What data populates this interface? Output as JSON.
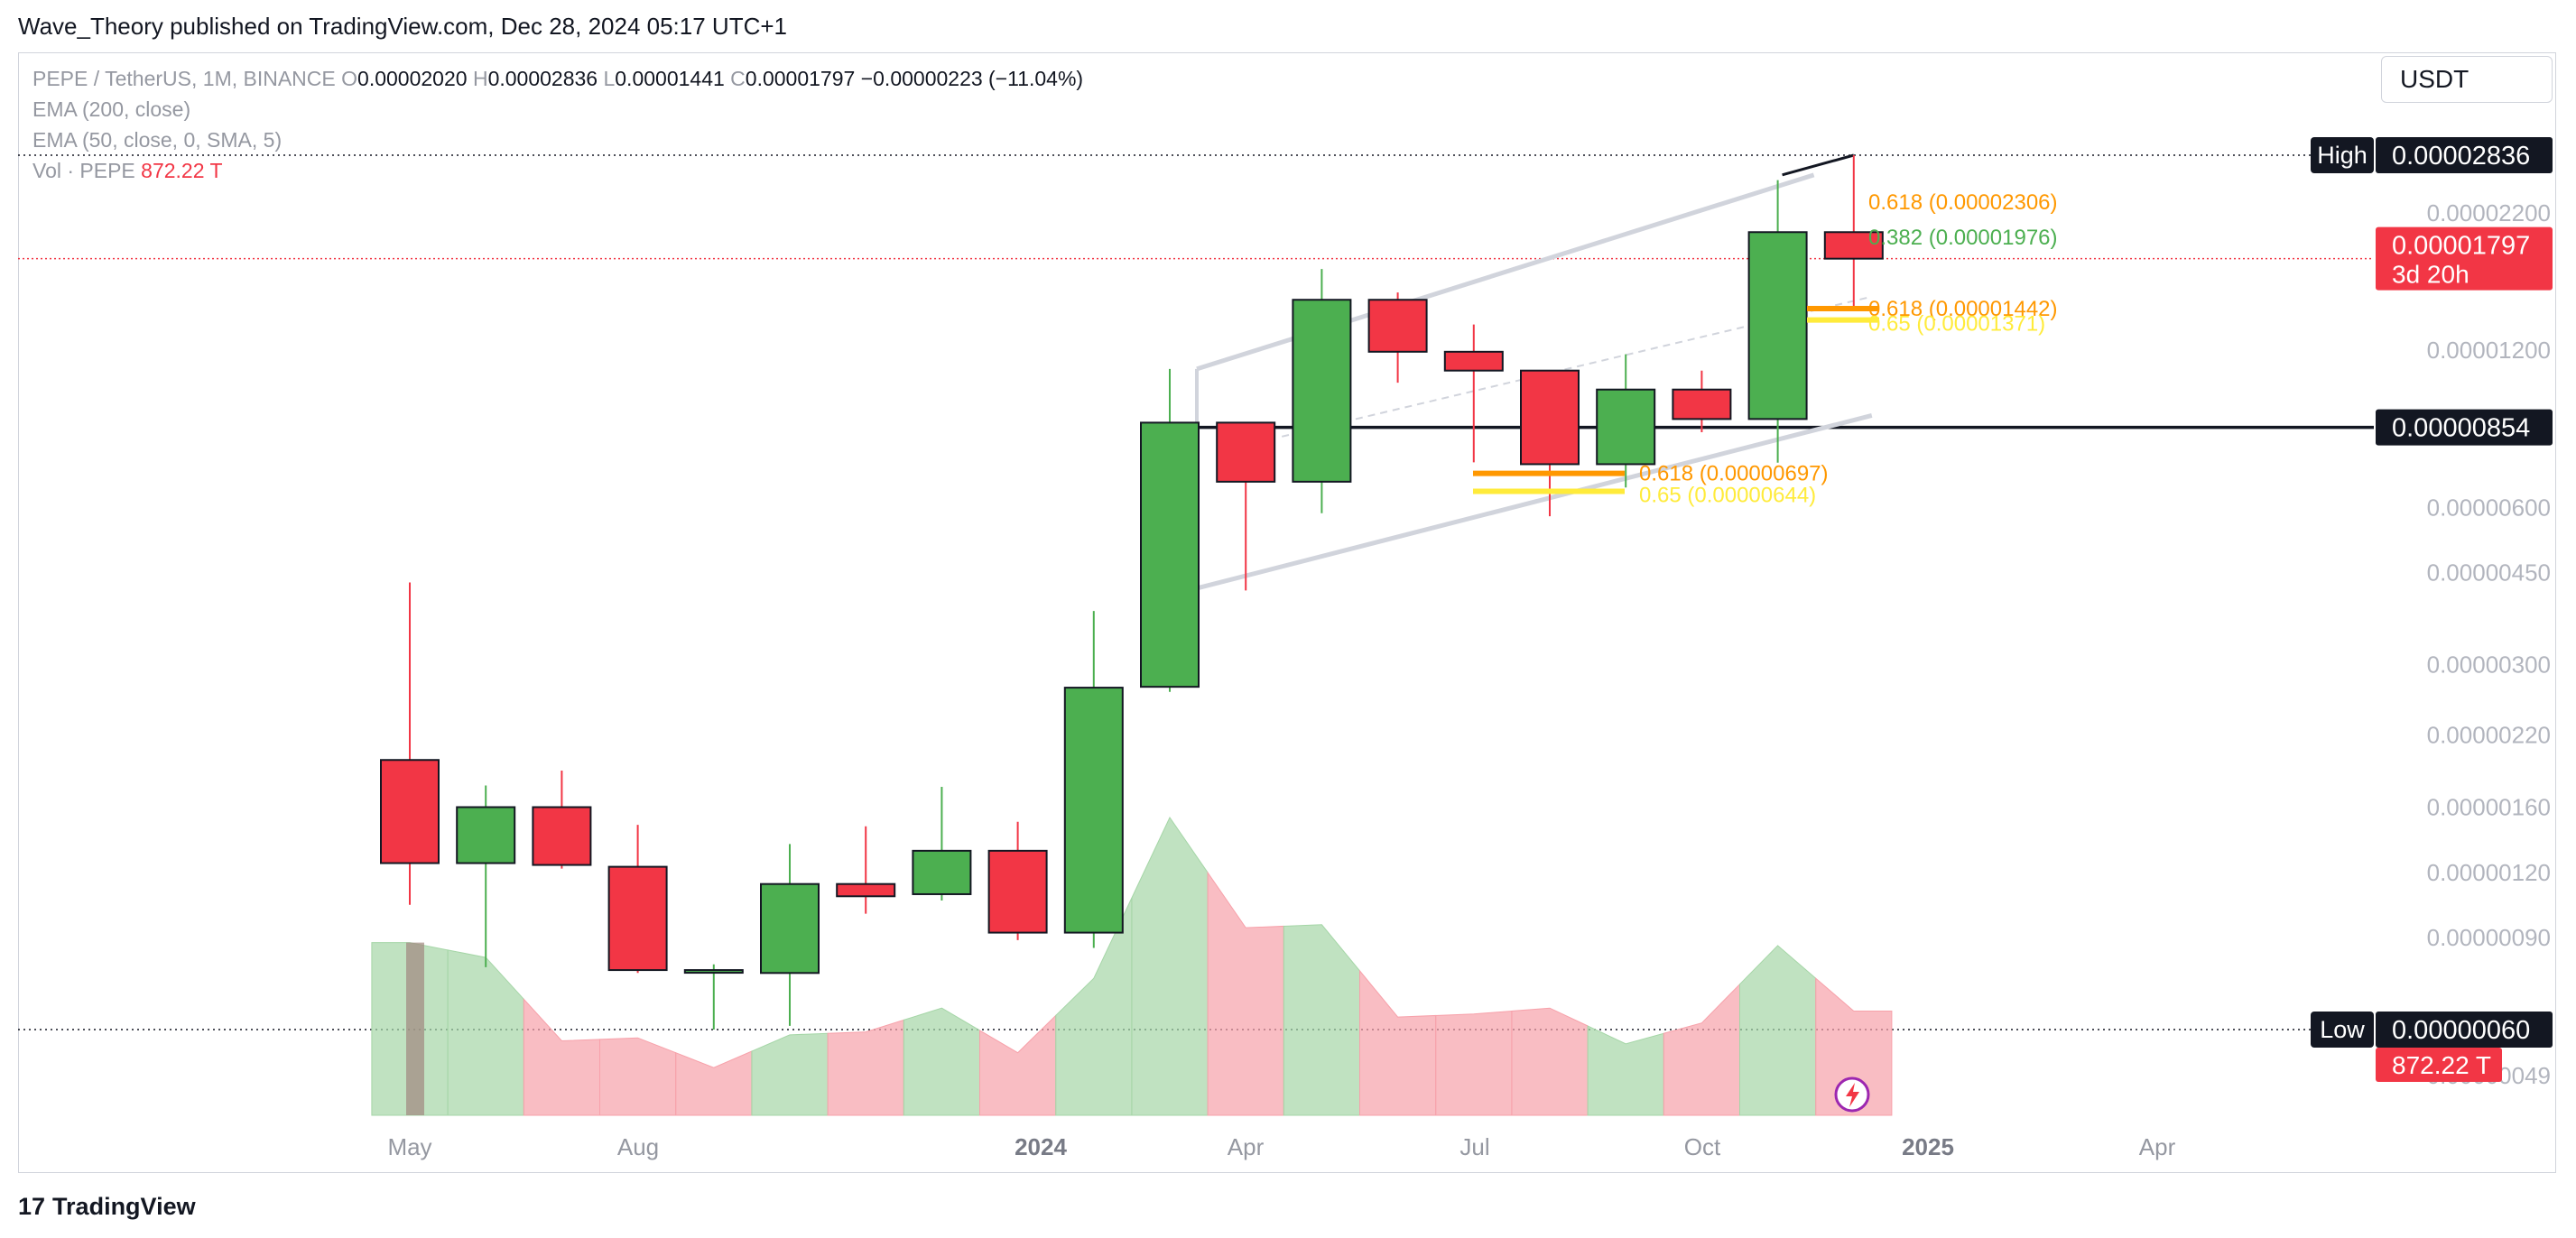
{
  "publisher_line": "Wave_Theory published on TradingView.com, Dec 28, 2024 05:17 UTC+1",
  "legend": {
    "symbol": "PEPE / TetherUS, 1M, BINANCE",
    "o_label": "O",
    "o_value": "0.00002020",
    "h_label": "H",
    "h_value": "0.00002836",
    "l_label": "L",
    "l_value": "0.00001441",
    "c_label": "C",
    "c_value": "0.00001797",
    "change": "−0.00000223 (−11.04%)",
    "ema200": "EMA (200, close)",
    "ema50": "EMA (50, close, 0, SMA, 5)",
    "vol_label": "Vol · PEPE",
    "vol_value": "872.22 T"
  },
  "currency_selector": "USDT",
  "footer_brand": "TradingView",
  "colors": {
    "up": "#4caf50",
    "down": "#f23645",
    "channel": "#d1d4dc",
    "fib_orange": "#ff9800",
    "fib_yellow": "#ffeb3b",
    "fib_green": "#4caf50"
  },
  "chart_data": {
    "type": "candlestick",
    "scale": "log",
    "x_ticks": [
      {
        "label": "May",
        "year": false
      },
      {
        "label": "Aug",
        "year": false
      },
      {
        "label": "2024",
        "year": true
      },
      {
        "label": "Apr",
        "year": false
      },
      {
        "label": "Jul",
        "year": false
      },
      {
        "label": "Oct",
        "year": false
      },
      {
        "label": "2025",
        "year": true
      },
      {
        "label": "Apr",
        "year": false
      }
    ],
    "y_ticks": [
      "0.00002200",
      "0.00001200",
      "0.00000600",
      "0.00000450",
      "0.00000300",
      "0.00000220",
      "0.00000160",
      "0.00000120",
      "0.00000090",
      "0.00000049"
    ],
    "candles": [
      {
        "month": "2023-05",
        "o": 1.97e-06,
        "h": 4.31e-06,
        "l": 1.04e-06,
        "c": 1.25e-06
      },
      {
        "month": "2023-06",
        "o": 1.25e-06,
        "h": 1.76e-06,
        "l": 7.9e-07,
        "c": 1.6e-06
      },
      {
        "month": "2023-07",
        "o": 1.6e-06,
        "h": 1.88e-06,
        "l": 1.22e-06,
        "c": 1.24e-06
      },
      {
        "month": "2023-08",
        "o": 1.23e-06,
        "h": 1.48e-06,
        "l": 7.7e-07,
        "c": 7.8e-07
      },
      {
        "month": "2023-09",
        "o": 7.8e-07,
        "h": 8e-07,
        "l": 6e-07,
        "c": 7.8e-07
      },
      {
        "month": "2023-10",
        "o": 7.7e-07,
        "h": 1.36e-06,
        "l": 6.1e-07,
        "c": 1.14e-06
      },
      {
        "month": "2023-11",
        "o": 1.14e-06,
        "h": 1.47e-06,
        "l": 1e-06,
        "c": 1.08e-06
      },
      {
        "month": "2023-12",
        "o": 1.09e-06,
        "h": 1.75e-06,
        "l": 1.06e-06,
        "c": 1.32e-06
      },
      {
        "month": "2024-01",
        "o": 1.32e-06,
        "h": 1.5e-06,
        "l": 8.9e-07,
        "c": 9.2e-07
      },
      {
        "month": "2024-02",
        "o": 9.2e-07,
        "h": 3.8e-06,
        "l": 8.6e-07,
        "c": 2.71e-06
      },
      {
        "month": "2024-03",
        "o": 2.72e-06,
        "h": 1.105e-05,
        "l": 2.66e-06,
        "c": 8.72e-06
      },
      {
        "month": "2024-04",
        "o": 8.72e-06,
        "h": 8.72e-06,
        "l": 4.16e-06,
        "c": 6.72e-06
      },
      {
        "month": "2024-05",
        "o": 6.72e-06,
        "h": 1.717e-05,
        "l": 5.85e-06,
        "c": 1.499e-05
      },
      {
        "month": "2024-06",
        "o": 1.499e-05,
        "h": 1.548e-05,
        "l": 1.04e-05,
        "c": 1.192e-05
      },
      {
        "month": "2024-07",
        "o": 1.192e-05,
        "h": 1.344e-05,
        "l": 7.32e-06,
        "c": 1.097e-05
      },
      {
        "month": "2024-08",
        "o": 1.097e-05,
        "h": 1.097e-05,
        "l": 5.77e-06,
        "c": 7.26e-06
      },
      {
        "month": "2024-09",
        "o": 7.26e-06,
        "h": 1.179e-05,
        "l": 6.55e-06,
        "c": 1.009e-05
      },
      {
        "month": "2024-10",
        "o": 1.009e-05,
        "h": 1.097e-05,
        "l": 8.36e-06,
        "c": 8.86e-06
      },
      {
        "month": "2024-11",
        "o": 8.86e-06,
        "h": 2.541e-05,
        "l": 7.31e-06,
        "c": 2.02e-05
      },
      {
        "month": "2024-12",
        "o": 2.02e-05,
        "h": 2.836e-05,
        "l": 1.441e-05,
        "c": 1.797e-05
      }
    ],
    "volume_up": [
      true,
      true,
      false,
      false,
      false,
      true,
      false,
      true,
      false,
      true,
      true,
      false,
      true,
      false,
      false,
      false,
      true,
      false,
      true,
      false
    ],
    "volume": [
      0.58,
      0.53,
      0.25,
      0.26,
      0.16,
      0.27,
      0.28,
      0.36,
      0.21,
      0.46,
      1.0,
      0.63,
      0.64,
      0.33,
      0.34,
      0.36,
      0.24,
      0.31,
      0.57,
      0.35
    ],
    "price_labels": [
      {
        "tag": "High",
        "value": "0.00002836",
        "style": "dark"
      },
      {
        "tag": "",
        "value": "0.00001797",
        "extra": "3d 20h",
        "style": "red"
      },
      {
        "tag": "",
        "value": "0.00000854",
        "style": "dark"
      },
      {
        "tag": "Low",
        "value": "0.00000060",
        "extra": "872.22 T",
        "style": "dark"
      }
    ],
    "fib_levels": [
      {
        "label": "0.618 (0.00002306)",
        "value": 2.306e-05,
        "color": "#ff9800"
      },
      {
        "label": "0.382 (0.00001976)",
        "value": 1.976e-05,
        "color": "#4caf50"
      },
      {
        "label": "0.618 (0.00001442)",
        "value": 1.442e-05,
        "color": "#ff9800"
      },
      {
        "label": "0.65 (0.00001371)",
        "value": 1.371e-05,
        "color": "#ffeb3b"
      },
      {
        "label": "0.618 (0.00000697)",
        "value": 6.97e-06,
        "color": "#ff9800"
      },
      {
        "label": "0.65 (0.00000644)",
        "value": 6.44e-06,
        "color": "#ffeb3b"
      }
    ]
  }
}
